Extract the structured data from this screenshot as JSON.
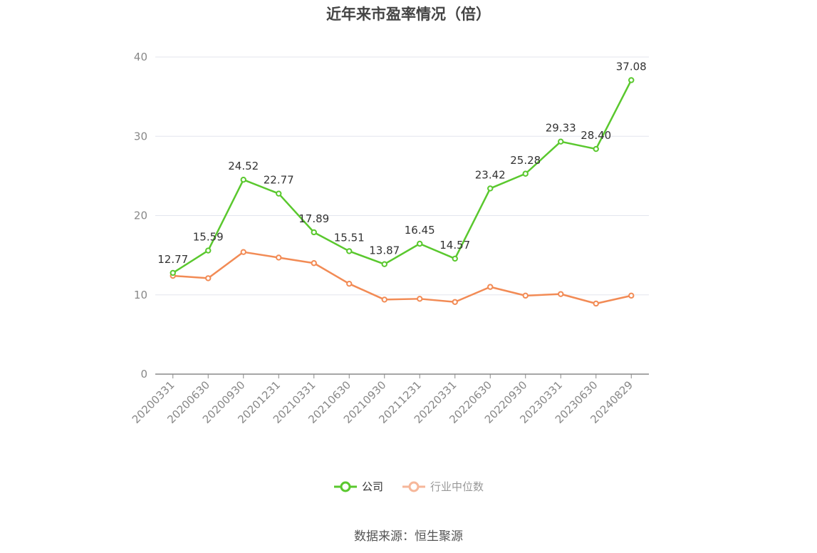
{
  "title": "近年来市盈率情况（倍）",
  "source": "数据来源：恒生聚源",
  "colors": {
    "company": "#5ac82e",
    "industry": "#f28b55",
    "industry_legend": "#f6b79a",
    "grid": "#e3e6ee",
    "axis": "#888888"
  },
  "chart_data": {
    "type": "line",
    "title": "近年来市盈率情况（倍）",
    "xlabel": "",
    "ylabel": "",
    "categories": [
      "20200331",
      "20200630",
      "20200930",
      "20201231",
      "20210331",
      "20210630",
      "20210930",
      "20211231",
      "20220331",
      "20220630",
      "20220930",
      "20230331",
      "20230630",
      "20240829"
    ],
    "ylim": [
      0,
      40
    ],
    "yticks": [
      "0",
      "10",
      "20",
      "30",
      "40"
    ],
    "grid": true,
    "legend_position": "bottom",
    "series": [
      {
        "name": "公司",
        "values": [
          12.77,
          15.59,
          24.52,
          22.77,
          17.89,
          15.51,
          13.87,
          16.45,
          14.57,
          23.42,
          25.28,
          29.33,
          28.4,
          37.08
        ],
        "labels": [
          "12.77",
          "15.59",
          "24.52",
          "22.77",
          "17.89",
          "15.51",
          "13.87",
          "16.45",
          "14.57",
          "23.42",
          "25.28",
          "29.33",
          "28.40",
          "37.08"
        ]
      },
      {
        "name": "行业中位数",
        "values": [
          12.4,
          12.1,
          15.4,
          14.7,
          14.0,
          11.4,
          9.4,
          9.5,
          9.1,
          11.0,
          9.9,
          10.1,
          8.9,
          9.9
        ]
      }
    ]
  }
}
